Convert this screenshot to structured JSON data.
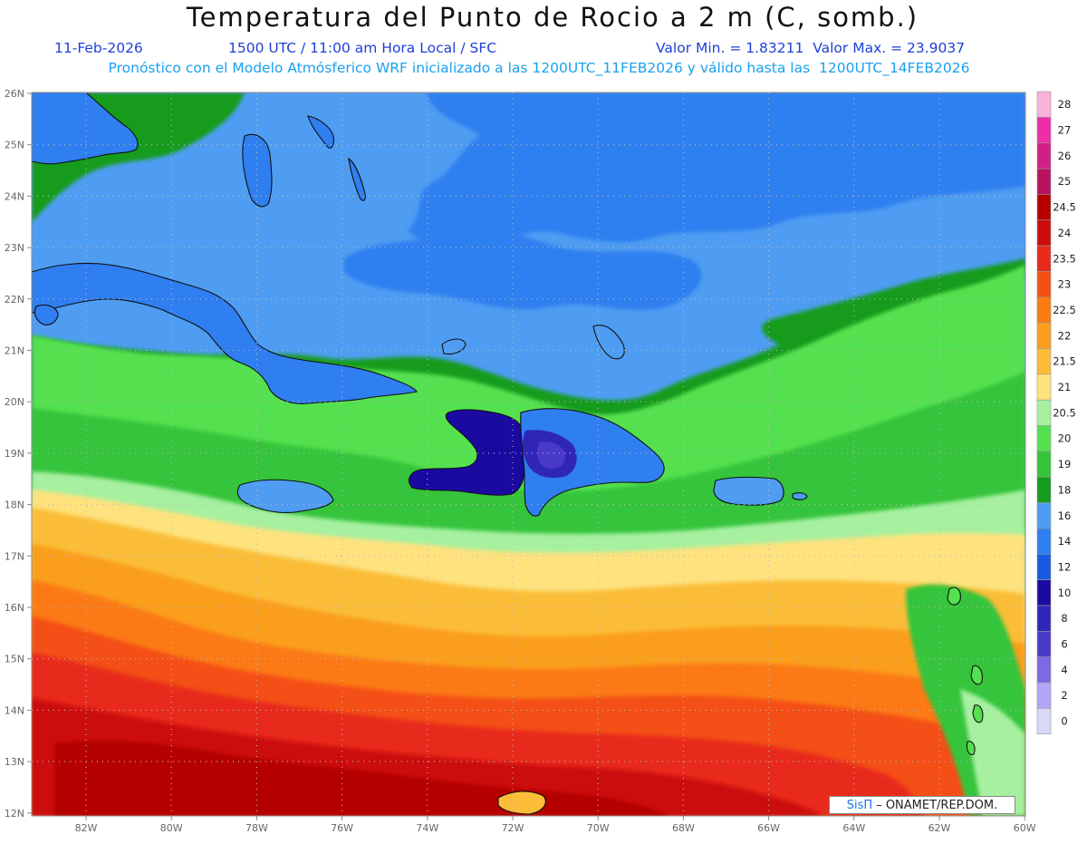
{
  "header": {
    "title": "Temperatura del Punto de Rocio a 2 m (C, somb.)",
    "date": "11-Feb-2026",
    "time": "1500 UTC / 11:00 am Hora Local / SFC",
    "min_max": "Valor Min. = 1.83211  Valor Max. = 23.9037",
    "model_line": "Pronóstico con el Modelo Atmósferico WRF inicializado a las 1200UTC_11FEB2026 y válido hasta las  1200UTC_14FEB2026"
  },
  "map": {
    "lat_labels": [
      "26N",
      "25N",
      "24N",
      "23N",
      "22N",
      "21N",
      "20N",
      "19N",
      "18N",
      "17N",
      "16N",
      "15N",
      "14N",
      "13N",
      "12N"
    ],
    "lon_labels": [
      "82W",
      "80W",
      "78W",
      "76W",
      "74W",
      "72W",
      "70W",
      "68W",
      "66W",
      "64W",
      "62W",
      "60W"
    ]
  },
  "colorbar": {
    "labels": [
      "28",
      "27",
      "26",
      "25",
      "24.5",
      "24",
      "23.5",
      "23",
      "22.5",
      "22",
      "21.5",
      "21",
      "20.5",
      "20",
      "19",
      "18",
      "16",
      "14",
      "12",
      "10",
      "8",
      "6",
      "4",
      "2",
      "0"
    ],
    "colors": [
      "#f7b3d8",
      "#ee2da6",
      "#d11f85",
      "#b9135f",
      "#b50000",
      "#cc0c0c",
      "#e82a1a",
      "#f45014",
      "#fb7a12",
      "#fb9e1d",
      "#fbbd38",
      "#fde27e",
      "#a6f0a0",
      "#54e14f",
      "#36c43a",
      "#169b1e",
      "#4f9df2",
      "#2f7ff0",
      "#1a5ae0",
      "#1a0aa0",
      "#2f26b8",
      "#4a3ac8",
      "#7e68e6",
      "#b3a4f6",
      "#d8d8f8"
    ]
  },
  "credit": {
    "sis": "SisΠ",
    "text": "– ONAMET/REP.DOM."
  }
}
